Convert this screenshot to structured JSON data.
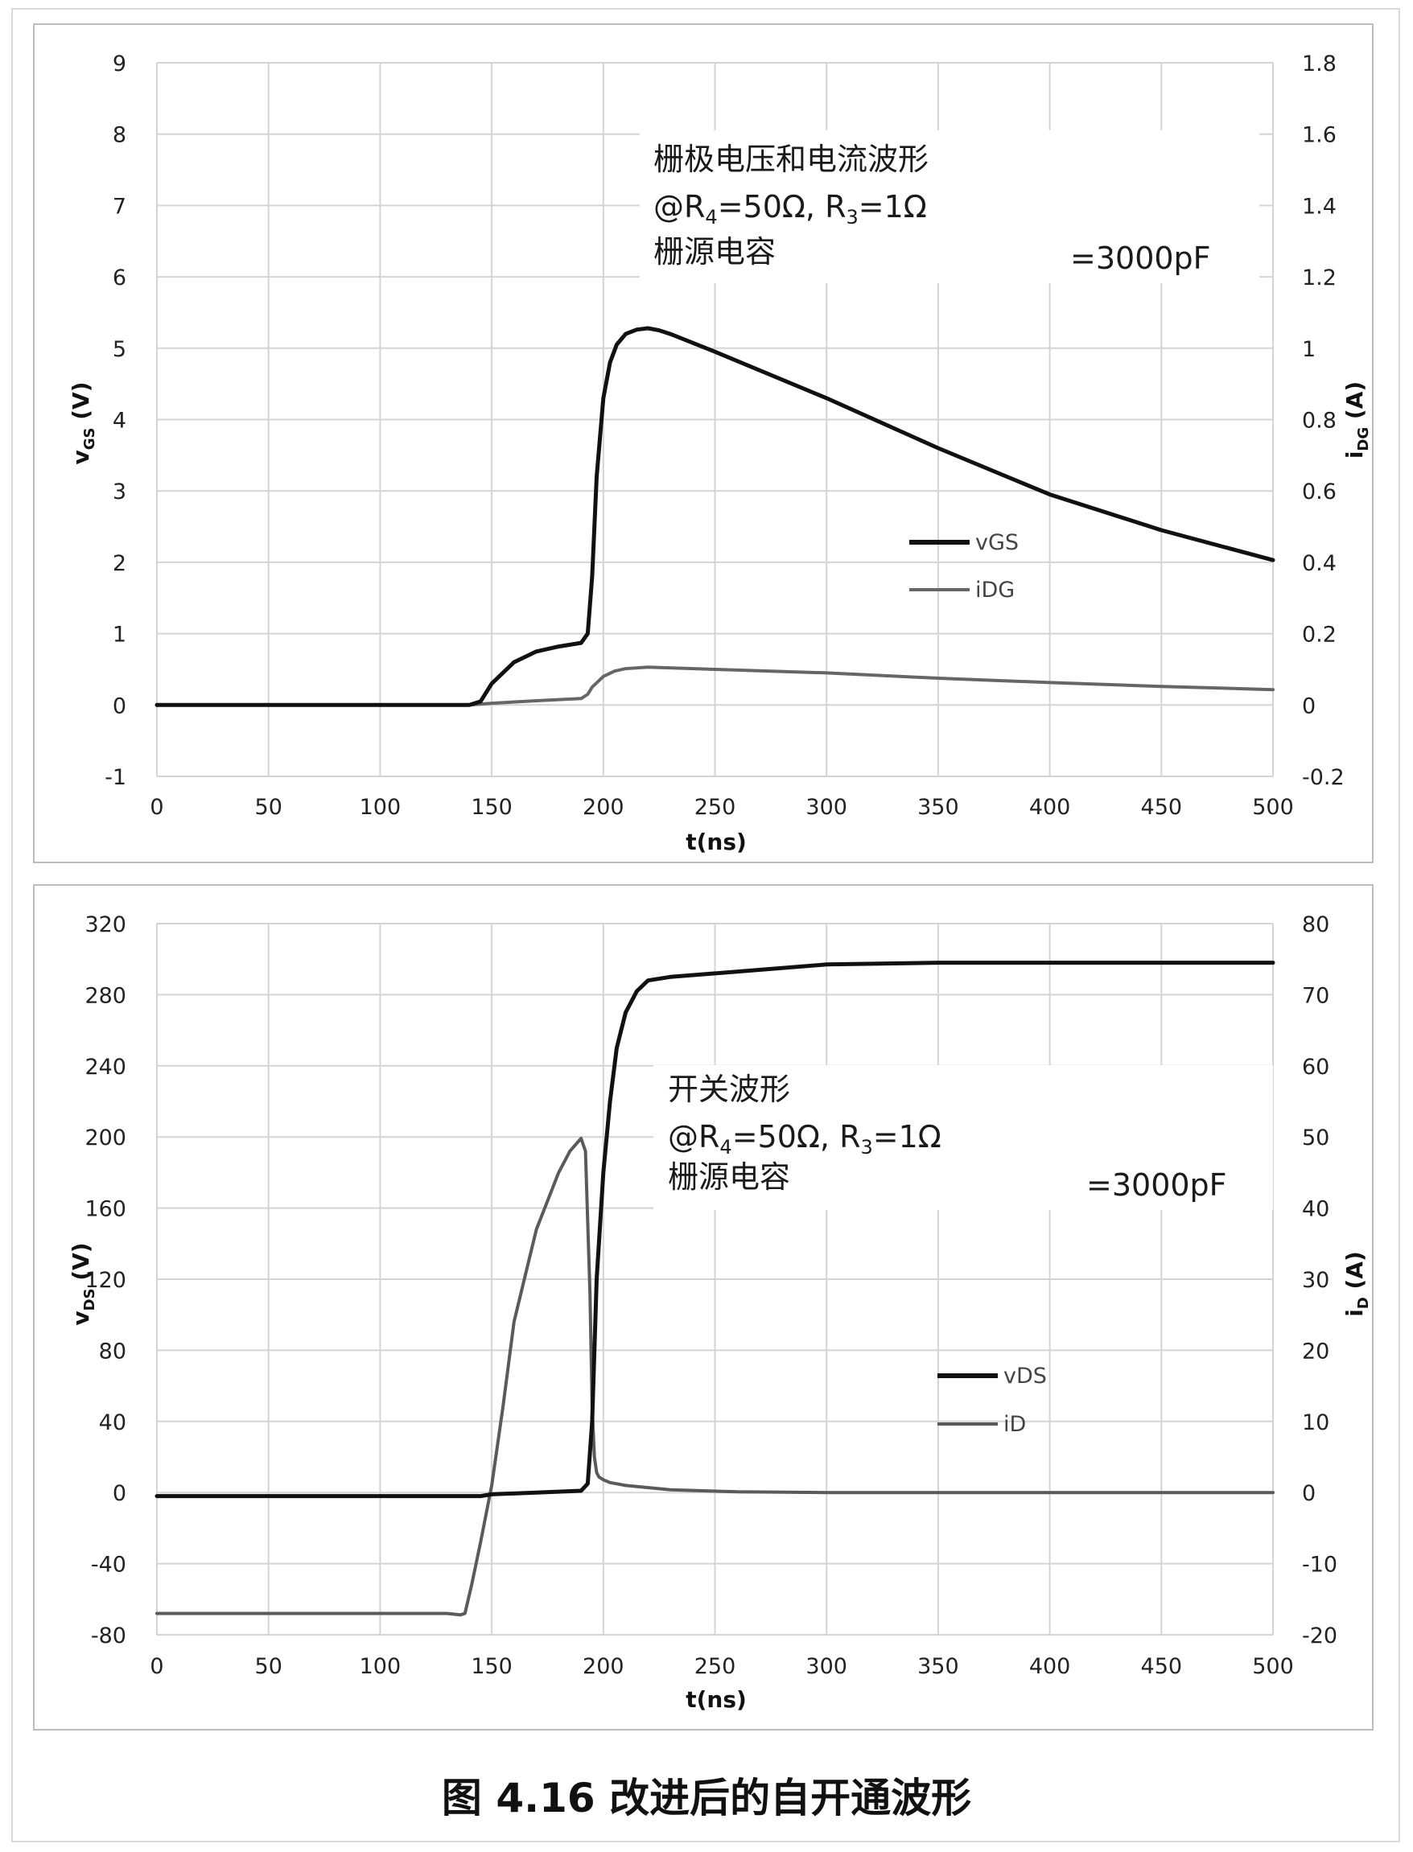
{
  "figure_caption": "图 4.16 改进后的自开通波形",
  "chart_data": [
    {
      "type": "line",
      "x_label": "t(ns)",
      "y_left_label_main": "v",
      "y_left_label_sub": "GS",
      "y_left_label_unit": " (V)",
      "y_right_label_main": "i",
      "y_right_label_sub": "DG",
      "y_right_label_unit": " (A)",
      "xlim": [
        0,
        500
      ],
      "y_left_lim": [
        -1,
        9
      ],
      "y_right_lim": [
        -0.2,
        1.8
      ],
      "x_ticks": [
        "0",
        "50",
        "100",
        "150",
        "200",
        "250",
        "300",
        "350",
        "400",
        "450",
        "500"
      ],
      "y_left_ticks": [
        "-1",
        "0",
        "1",
        "2",
        "3",
        "4",
        "5",
        "6",
        "7",
        "8",
        "9"
      ],
      "y_right_ticks": [
        "-0.2",
        "0",
        "0.2",
        "0.4",
        "0.6",
        "0.8",
        "1",
        "1.2",
        "1.4",
        "1.6",
        "1.8"
      ],
      "grid": true,
      "legend_position": "center-right",
      "annotation": {
        "line1": "栅极电压和电流波形",
        "line2_prefix": "@R",
        "line2_sub1": "4",
        "line2_mid": "=50Ω, R",
        "line2_sub2": "3",
        "line2_suffix": "=1Ω",
        "line3": "栅源电容",
        "line4": "=3000pF"
      },
      "series": [
        {
          "name": "vGS",
          "axis": "left",
          "color": "#111111",
          "x": [
            0,
            50,
            100,
            140,
            145,
            150,
            160,
            170,
            180,
            190,
            193,
            195,
            197,
            200,
            203,
            206,
            210,
            215,
            220,
            225,
            230,
            250,
            300,
            350,
            400,
            450,
            500
          ],
          "y": [
            0,
            0,
            0,
            0,
            0.05,
            0.3,
            0.6,
            0.75,
            0.82,
            0.87,
            1.0,
            1.8,
            3.2,
            4.3,
            4.8,
            5.05,
            5.2,
            5.26,
            5.28,
            5.25,
            5.2,
            4.95,
            4.3,
            3.6,
            2.95,
            2.45,
            2.03
          ]
        },
        {
          "name": "iDG",
          "axis": "right",
          "color": "#666666",
          "x": [
            0,
            50,
            100,
            140,
            150,
            170,
            190,
            193,
            195,
            200,
            205,
            210,
            220,
            250,
            300,
            350,
            400,
            450,
            500
          ],
          "y": [
            0,
            0,
            0,
            0,
            0.005,
            0.012,
            0.018,
            0.03,
            0.05,
            0.08,
            0.095,
            0.102,
            0.106,
            0.1,
            0.09,
            0.075,
            0.063,
            0.052,
            0.043
          ]
        }
      ]
    },
    {
      "type": "line",
      "x_label": "t(ns)",
      "y_left_label_main": "v",
      "y_left_label_sub": "DS",
      "y_left_label_unit": " (V)",
      "y_right_label_main": "i",
      "y_right_label_sub": "D",
      "y_right_label_unit": " (A)",
      "xlim": [
        0,
        500
      ],
      "y_left_lim": [
        -80,
        320
      ],
      "y_right_lim": [
        -20,
        80
      ],
      "x_ticks": [
        "0",
        "50",
        "100",
        "150",
        "200",
        "250",
        "300",
        "350",
        "400",
        "450",
        "500"
      ],
      "y_left_ticks": [
        "-80",
        "-40",
        "0",
        "40",
        "80",
        "120",
        "160",
        "200",
        "240",
        "280",
        "320"
      ],
      "y_right_ticks": [
        "-20",
        "-10",
        "0",
        "10",
        "20",
        "30",
        "40",
        "50",
        "60",
        "70",
        "80"
      ],
      "grid": true,
      "legend_position": "center-right",
      "annotation": {
        "line1": "开关波形",
        "line2_prefix": "@R",
        "line2_sub1": "4",
        "line2_mid": "=50Ω, R",
        "line2_sub2": "3",
        "line2_suffix": "=1Ω",
        "line3": "栅源电容",
        "line4": "=3000pF"
      },
      "series": [
        {
          "name": "vDS",
          "axis": "left",
          "color": "#111111",
          "x": [
            0,
            50,
            100,
            145,
            150,
            170,
            190,
            193,
            195,
            197,
            200,
            203,
            206,
            210,
            215,
            220,
            230,
            250,
            300,
            350,
            400,
            450,
            500
          ],
          "y": [
            -2,
            -2,
            -2,
            -2,
            -1,
            0,
            1,
            5,
            40,
            120,
            180,
            220,
            250,
            270,
            282,
            288,
            290,
            292,
            297,
            298,
            298,
            298,
            298
          ]
        },
        {
          "name": "iD",
          "axis": "right",
          "color": "#5a5a5a",
          "x": [
            0,
            50,
            100,
            130,
            136,
            138,
            141,
            145,
            150,
            155,
            160,
            170,
            180,
            185,
            190,
            192,
            194,
            195,
            196,
            197,
            198,
            200,
            203,
            210,
            230,
            260,
            300,
            400,
            500
          ],
          "y": [
            -17,
            -17,
            -17,
            -17,
            -17.2,
            -17,
            -13,
            -7,
            1,
            12,
            24,
            37,
            45,
            48,
            49.8,
            48,
            28,
            12,
            5,
            2.8,
            2.2,
            1.8,
            1.4,
            1.0,
            0.4,
            0.1,
            0,
            0,
            0
          ]
        }
      ]
    }
  ]
}
